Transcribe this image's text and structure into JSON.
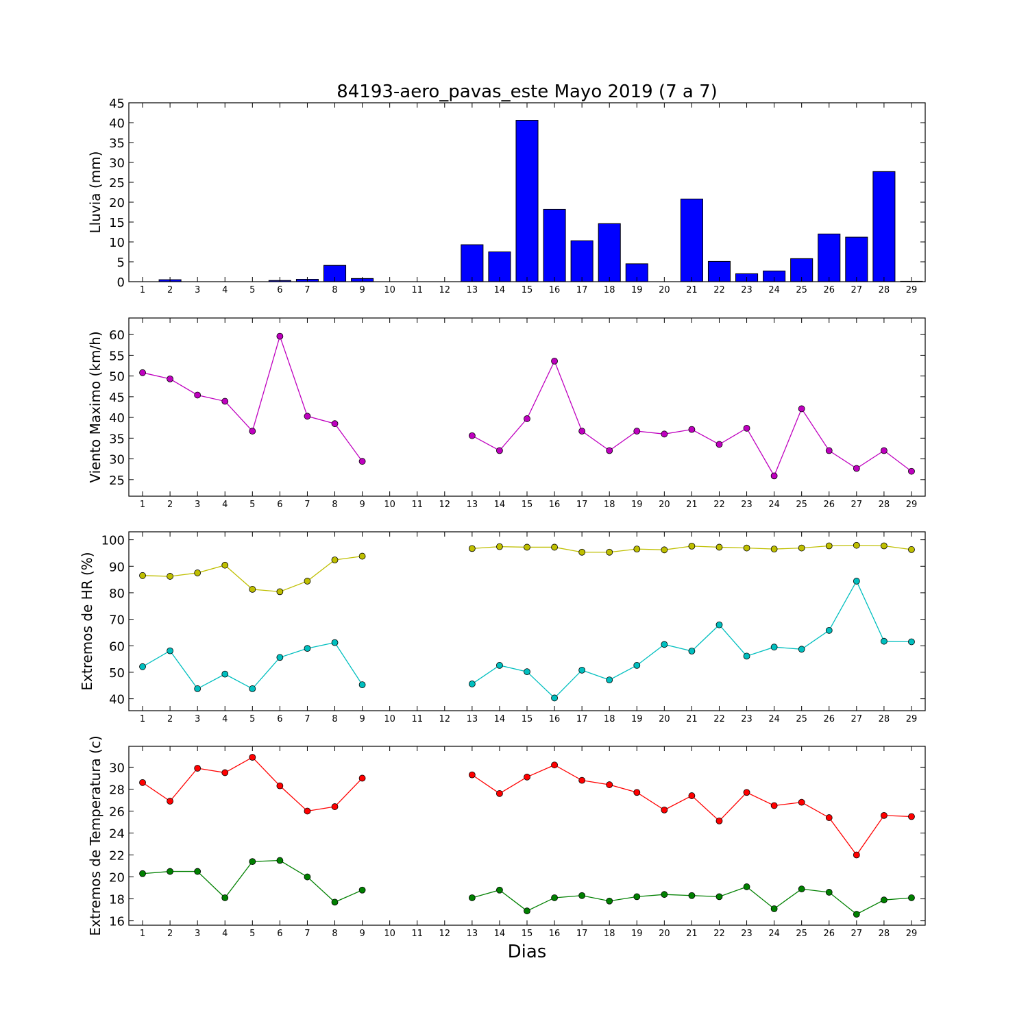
{
  "figure": {
    "title": "84193-aero_pavas_este Mayo 2019  (7 a 7)",
    "xlabel": "Dias"
  },
  "chart_data": [
    {
      "id": "lluvia",
      "type": "bar",
      "ylabel": "Lluvia (mm)",
      "ylim": [
        0,
        45
      ],
      "yticks": [
        0,
        5,
        10,
        15,
        20,
        25,
        30,
        35,
        40,
        45
      ],
      "xlim": [
        0.5,
        29.5
      ],
      "categories": [
        1,
        2,
        3,
        4,
        5,
        6,
        7,
        8,
        9,
        10,
        11,
        12,
        13,
        14,
        15,
        16,
        17,
        18,
        19,
        20,
        21,
        22,
        23,
        24,
        25,
        26,
        27,
        28,
        29
      ],
      "series": [
        {
          "color": "#0000ff",
          "values": [
            0,
            0.5,
            0,
            0,
            0,
            0.3,
            0.6,
            4.1,
            0.8,
            0,
            0,
            0,
            9.3,
            7.5,
            40.6,
            18.2,
            10.3,
            14.6,
            4.5,
            0,
            20.8,
            5.1,
            2.0,
            2.7,
            5.8,
            12.0,
            11.2,
            27.7,
            0.1
          ]
        }
      ]
    },
    {
      "id": "viento",
      "type": "line",
      "ylabel": "Viento Maximo (km/h)",
      "ylim": [
        21,
        64
      ],
      "yticks": [
        25,
        30,
        35,
        40,
        45,
        50,
        55,
        60
      ],
      "xlim": [
        0.5,
        29.5
      ],
      "x": [
        1,
        2,
        3,
        4,
        5,
        6,
        7,
        8,
        9,
        10,
        11,
        12,
        13,
        14,
        15,
        16,
        17,
        18,
        19,
        20,
        21,
        22,
        23,
        24,
        25,
        26,
        27,
        28,
        29
      ],
      "series": [
        {
          "color": "#bf00bf",
          "values": [
            50.8,
            49.3,
            45.4,
            43.9,
            36.7,
            59.6,
            40.3,
            38.5,
            29.4,
            null,
            null,
            null,
            35.6,
            32.0,
            39.7,
            53.6,
            36.7,
            32.0,
            36.7,
            36.0,
            37.1,
            33.5,
            37.4,
            25.9,
            42.1,
            32.0,
            27.7,
            32.0,
            27.0
          ]
        }
      ]
    },
    {
      "id": "hr",
      "type": "line",
      "ylabel": "Extremos de HR (%)",
      "ylim": [
        35.5,
        103
      ],
      "yticks": [
        40,
        50,
        60,
        70,
        80,
        90,
        100
      ],
      "xlim": [
        0.5,
        29.5
      ],
      "x": [
        1,
        2,
        3,
        4,
        5,
        6,
        7,
        8,
        9,
        10,
        11,
        12,
        13,
        14,
        15,
        16,
        17,
        18,
        19,
        20,
        21,
        22,
        23,
        24,
        25,
        26,
        27,
        28,
        29
      ],
      "series": [
        {
          "color": "#bfbf00",
          "values": [
            86.5,
            86.2,
            87.5,
            90.4,
            81.3,
            80.4,
            84.4,
            92.4,
            93.8,
            null,
            null,
            null,
            96.7,
            97.4,
            97.2,
            97.2,
            95.3,
            95.3,
            96.5,
            96.2,
            97.6,
            97.2,
            96.9,
            96.5,
            96.9,
            97.7,
            97.9,
            97.7,
            96.3
          ]
        },
        {
          "color": "#00bfbf",
          "values": [
            52.1,
            58.1,
            43.8,
            49.3,
            43.8,
            55.6,
            59.0,
            61.2,
            45.3,
            null,
            null,
            null,
            45.6,
            52.6,
            50.2,
            40.3,
            50.8,
            47.1,
            52.6,
            60.5,
            58.0,
            67.9,
            56.1,
            59.5,
            58.7,
            65.8,
            84.4,
            61.7,
            61.5
          ]
        }
      ]
    },
    {
      "id": "temperatura",
      "type": "line",
      "ylabel": "Extremos de Temperatura (c)",
      "ylim": [
        15.6,
        31.9
      ],
      "yticks": [
        16,
        18,
        20,
        22,
        24,
        26,
        28,
        30
      ],
      "xlim": [
        0.5,
        29.5
      ],
      "x": [
        1,
        2,
        3,
        4,
        5,
        6,
        7,
        8,
        9,
        10,
        11,
        12,
        13,
        14,
        15,
        16,
        17,
        18,
        19,
        20,
        21,
        22,
        23,
        24,
        25,
        26,
        27,
        28,
        29
      ],
      "series": [
        {
          "color": "#ff0000",
          "values": [
            28.6,
            26.9,
            29.9,
            29.5,
            30.9,
            28.3,
            26.0,
            26.4,
            29.0,
            null,
            null,
            null,
            29.3,
            27.6,
            29.1,
            30.2,
            28.8,
            28.4,
            27.7,
            26.1,
            27.4,
            25.1,
            27.7,
            26.5,
            26.8,
            25.4,
            22.0,
            25.6,
            25.5
          ]
        },
        {
          "color": "#008000",
          "values": [
            20.3,
            20.5,
            20.5,
            18.1,
            21.4,
            21.5,
            20.0,
            17.7,
            18.8,
            null,
            null,
            null,
            18.1,
            18.8,
            16.9,
            18.1,
            18.3,
            17.8,
            18.2,
            18.4,
            18.3,
            18.2,
            19.1,
            17.1,
            18.9,
            18.6,
            16.6,
            17.9,
            18.1
          ]
        }
      ]
    }
  ]
}
